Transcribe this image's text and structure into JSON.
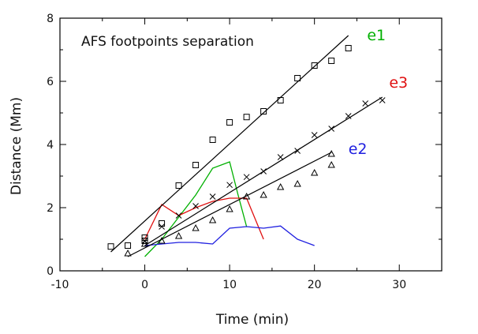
{
  "chart_data": {
    "type": "scatter",
    "title": "AFS footpoints separation",
    "xlabel": "Time (min)",
    "ylabel": "Distance (Mm)",
    "xlim": [
      -10,
      35
    ],
    "ylim": [
      0,
      8
    ],
    "x_ticks": [
      "-10",
      "0",
      "10",
      "20",
      "30"
    ],
    "y_ticks": [
      "0",
      "2",
      "4",
      "6",
      "8"
    ],
    "grid": false,
    "series": [
      {
        "marker": "square",
        "color": "#000000",
        "points": [
          [
            -4,
            0.77
          ],
          [
            -2,
            0.8
          ],
          [
            0,
            1.05
          ],
          [
            0,
            0.95
          ],
          [
            2,
            1.5
          ],
          [
            4,
            2.7
          ],
          [
            6,
            3.35
          ],
          [
            8,
            4.15
          ],
          [
            10,
            4.7
          ],
          [
            12,
            4.87
          ],
          [
            14,
            5.05
          ],
          [
            16,
            5.4
          ],
          [
            18,
            6.1
          ],
          [
            20,
            6.5
          ],
          [
            22,
            6.65
          ],
          [
            24,
            7.05
          ]
        ]
      },
      {
        "marker": "cross",
        "color": "#000000",
        "points": [
          [
            0,
            0.95
          ],
          [
            2,
            1.4
          ],
          [
            4,
            1.75
          ],
          [
            6,
            2.05
          ],
          [
            8,
            2.35
          ],
          [
            10,
            2.72
          ],
          [
            12,
            2.97
          ],
          [
            14,
            3.15
          ],
          [
            16,
            3.6
          ],
          [
            18,
            3.8
          ],
          [
            20,
            4.3
          ],
          [
            22,
            4.5
          ],
          [
            24,
            4.9
          ],
          [
            26,
            5.3
          ],
          [
            28,
            5.4
          ]
        ]
      },
      {
        "marker": "triangle",
        "color": "#000000",
        "points": [
          [
            -2,
            0.55
          ],
          [
            0,
            0.85
          ],
          [
            2,
            0.95
          ],
          [
            4,
            1.1
          ],
          [
            6,
            1.35
          ],
          [
            8,
            1.6
          ],
          [
            10,
            1.95
          ],
          [
            12,
            2.35
          ],
          [
            14,
            2.4
          ],
          [
            16,
            2.65
          ],
          [
            18,
            2.75
          ],
          [
            20,
            3.1
          ],
          [
            22,
            3.35
          ],
          [
            22,
            3.7
          ]
        ]
      }
    ],
    "fit_lines": [
      {
        "x": [
          -4,
          24
        ],
        "y": [
          0.6,
          7.45
        ],
        "color": "#000000"
      },
      {
        "x": [
          0,
          28
        ],
        "y": [
          0.8,
          5.5
        ],
        "color": "#000000"
      },
      {
        "x": [
          -2,
          22
        ],
        "y": [
          0.45,
          3.75
        ],
        "color": "#000000"
      }
    ],
    "curves": [
      {
        "color": "#00b000",
        "x": [
          0,
          2,
          4,
          6,
          8,
          10,
          11,
          12
        ],
        "y": [
          0.45,
          1.0,
          1.7,
          2.4,
          3.25,
          3.45,
          2.4,
          1.4
        ]
      },
      {
        "color": "#e01010",
        "x": [
          0,
          2,
          4,
          6,
          8,
          10,
          12,
          14
        ],
        "y": [
          1.0,
          2.1,
          1.75,
          2.0,
          2.2,
          2.3,
          2.3,
          1.0
        ]
      },
      {
        "color": "#2020e0",
        "x": [
          0,
          2,
          4,
          6,
          8,
          10,
          12,
          14,
          16,
          18,
          20
        ],
        "y": [
          0.8,
          0.85,
          0.9,
          0.9,
          0.85,
          1.35,
          1.4,
          1.35,
          1.42,
          1.0,
          0.8
        ]
      }
    ],
    "annotations": [
      {
        "text": "e1",
        "color": "#00b000",
        "x": 26.2,
        "y": 7.3
      },
      {
        "text": "e3",
        "color": "#e01010",
        "x": 28.8,
        "y": 5.8
      },
      {
        "text": "e2",
        "color": "#2020e0",
        "x": 24.0,
        "y": 3.7
      }
    ]
  }
}
